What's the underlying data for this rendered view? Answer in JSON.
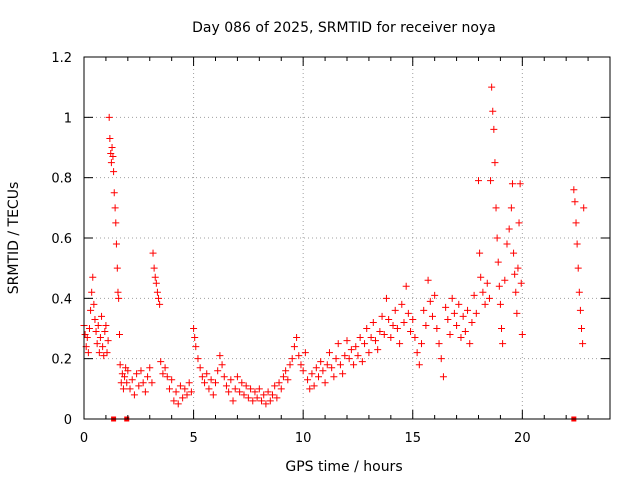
{
  "chart_data": {
    "type": "scatter",
    "title": "Day 086 of 2025, SRMTID for receiver noya",
    "xlabel": "GPS time / hours",
    "ylabel": "SRMTID / TECUs",
    "xlim": [
      0,
      24
    ],
    "ylim": [
      0,
      1.2
    ],
    "xticks": [
      0,
      5,
      10,
      15,
      20
    ],
    "xtick_labels": [
      "0",
      "5",
      "10",
      "15",
      "20"
    ],
    "yticks": [
      0,
      0.2,
      0.4,
      0.6,
      0.8,
      1.0,
      1.2
    ],
    "ytick_labels": [
      "0",
      "0.2",
      "0.4",
      "0.6",
      "0.8",
      "1",
      "1.2"
    ],
    "grid": true,
    "marker": "plus",
    "color": "#ff0000",
    "series": [
      {
        "name": "SRMTID",
        "points": [
          [
            0.0,
            0.31
          ],
          [
            0.05,
            0.28
          ],
          [
            0.1,
            0.24
          ],
          [
            0.15,
            0.27
          ],
          [
            0.2,
            0.22
          ],
          [
            0.25,
            0.3
          ],
          [
            0.3,
            0.36
          ],
          [
            0.35,
            0.42
          ],
          [
            0.4,
            0.47
          ],
          [
            0.45,
            0.38
          ],
          [
            0.5,
            0.33
          ],
          [
            0.55,
            0.29
          ],
          [
            0.6,
            0.25
          ],
          [
            0.65,
            0.31
          ],
          [
            0.7,
            0.22
          ],
          [
            0.75,
            0.27
          ],
          [
            0.8,
            0.34
          ],
          [
            0.85,
            0.24
          ],
          [
            0.9,
            0.21
          ],
          [
            0.95,
            0.29
          ],
          [
            1.0,
            0.31
          ],
          [
            1.05,
            0.22
          ],
          [
            1.1,
            0.26
          ],
          [
            1.15,
            1.0
          ],
          [
            1.18,
            0.93
          ],
          [
            1.22,
            0.88
          ],
          [
            1.25,
            0.85
          ],
          [
            1.28,
            0.9
          ],
          [
            1.32,
            0.87
          ],
          [
            1.35,
            0.82
          ],
          [
            1.38,
            0.75
          ],
          [
            1.42,
            0.7
          ],
          [
            1.45,
            0.65
          ],
          [
            1.48,
            0.58
          ],
          [
            1.52,
            0.5
          ],
          [
            1.55,
            0.42
          ],
          [
            1.58,
            0.4
          ],
          [
            1.62,
            0.28
          ],
          [
            1.65,
            0.18
          ],
          [
            1.7,
            0.12
          ],
          [
            1.75,
            0.15
          ],
          [
            1.8,
            0.1
          ],
          [
            1.85,
            0.14
          ],
          [
            1.9,
            0.17
          ],
          [
            1.95,
            0.12
          ],
          [
            2.0,
            0.16
          ],
          [
            2.1,
            0.1
          ],
          [
            2.2,
            0.13
          ],
          [
            2.3,
            0.08
          ],
          [
            2.4,
            0.15
          ],
          [
            2.5,
            0.11
          ],
          [
            2.6,
            0.16
          ],
          [
            2.7,
            0.12
          ],
          [
            2.8,
            0.09
          ],
          [
            2.9,
            0.14
          ],
          [
            3.0,
            0.17
          ],
          [
            3.1,
            0.12
          ],
          [
            3.15,
            0.55
          ],
          [
            3.2,
            0.5
          ],
          [
            3.25,
            0.47
          ],
          [
            3.3,
            0.45
          ],
          [
            3.35,
            0.42
          ],
          [
            3.4,
            0.4
          ],
          [
            3.45,
            0.38
          ],
          [
            3.5,
            0.19
          ],
          [
            3.6,
            0.15
          ],
          [
            3.7,
            0.17
          ],
          [
            3.8,
            0.14
          ],
          [
            3.9,
            0.1
          ],
          [
            4.0,
            0.13
          ],
          [
            4.1,
            0.06
          ],
          [
            4.2,
            0.09
          ],
          [
            4.3,
            0.05
          ],
          [
            4.4,
            0.11
          ],
          [
            4.5,
            0.07
          ],
          [
            4.6,
            0.1
          ],
          [
            4.7,
            0.08
          ],
          [
            4.8,
            0.12
          ],
          [
            4.9,
            0.09
          ],
          [
            5.0,
            0.3
          ],
          [
            5.05,
            0.27
          ],
          [
            5.1,
            0.24
          ],
          [
            5.2,
            0.2
          ],
          [
            5.3,
            0.17
          ],
          [
            5.4,
            0.14
          ],
          [
            5.5,
            0.12
          ],
          [
            5.6,
            0.15
          ],
          [
            5.7,
            0.1
          ],
          [
            5.8,
            0.13
          ],
          [
            5.9,
            0.08
          ],
          [
            6.0,
            0.12
          ],
          [
            6.1,
            0.16
          ],
          [
            6.2,
            0.21
          ],
          [
            6.3,
            0.18
          ],
          [
            6.4,
            0.14
          ],
          [
            6.5,
            0.11
          ],
          [
            6.6,
            0.09
          ],
          [
            6.7,
            0.13
          ],
          [
            6.8,
            0.06
          ],
          [
            6.9,
            0.1
          ],
          [
            7.0,
            0.14
          ],
          [
            7.1,
            0.09
          ],
          [
            7.2,
            0.12
          ],
          [
            7.3,
            0.08
          ],
          [
            7.4,
            0.11
          ],
          [
            7.5,
            0.07
          ],
          [
            7.6,
            0.1
          ],
          [
            7.7,
            0.06
          ],
          [
            7.8,
            0.09
          ],
          [
            7.9,
            0.07
          ],
          [
            8.0,
            0.1
          ],
          [
            8.1,
            0.06
          ],
          [
            8.2,
            0.08
          ],
          [
            8.3,
            0.05
          ],
          [
            8.4,
            0.09
          ],
          [
            8.5,
            0.06
          ],
          [
            8.6,
            0.08
          ],
          [
            8.7,
            0.11
          ],
          [
            8.8,
            0.07
          ],
          [
            8.9,
            0.12
          ],
          [
            9.0,
            0.1
          ],
          [
            9.1,
            0.14
          ],
          [
            9.2,
            0.16
          ],
          [
            9.3,
            0.13
          ],
          [
            9.4,
            0.18
          ],
          [
            9.5,
            0.2
          ],
          [
            9.6,
            0.24
          ],
          [
            9.7,
            0.27
          ],
          [
            9.8,
            0.21
          ],
          [
            9.9,
            0.18
          ],
          [
            10.0,
            0.16
          ],
          [
            10.1,
            0.22
          ],
          [
            10.2,
            0.13
          ],
          [
            10.3,
            0.1
          ],
          [
            10.4,
            0.15
          ],
          [
            10.5,
            0.11
          ],
          [
            10.6,
            0.17
          ],
          [
            10.7,
            0.14
          ],
          [
            10.8,
            0.19
          ],
          [
            10.9,
            0.16
          ],
          [
            11.0,
            0.12
          ],
          [
            11.1,
            0.18
          ],
          [
            11.2,
            0.22
          ],
          [
            11.3,
            0.17
          ],
          [
            11.4,
            0.14
          ],
          [
            11.5,
            0.2
          ],
          [
            11.6,
            0.25
          ],
          [
            11.7,
            0.18
          ],
          [
            11.8,
            0.15
          ],
          [
            11.9,
            0.21
          ],
          [
            12.0,
            0.26
          ],
          [
            12.1,
            0.2
          ],
          [
            12.2,
            0.23
          ],
          [
            12.3,
            0.18
          ],
          [
            12.4,
            0.24
          ],
          [
            12.5,
            0.21
          ],
          [
            12.6,
            0.27
          ],
          [
            12.7,
            0.19
          ],
          [
            12.8,
            0.25
          ],
          [
            12.9,
            0.3
          ],
          [
            13.0,
            0.22
          ],
          [
            13.1,
            0.27
          ],
          [
            13.2,
            0.32
          ],
          [
            13.3,
            0.26
          ],
          [
            13.4,
            0.23
          ],
          [
            13.5,
            0.29
          ],
          [
            13.6,
            0.34
          ],
          [
            13.7,
            0.28
          ],
          [
            13.8,
            0.4
          ],
          [
            13.9,
            0.33
          ],
          [
            14.0,
            0.27
          ],
          [
            14.1,
            0.31
          ],
          [
            14.2,
            0.36
          ],
          [
            14.3,
            0.3
          ],
          [
            14.4,
            0.25
          ],
          [
            14.5,
            0.38
          ],
          [
            14.6,
            0.32
          ],
          [
            14.7,
            0.44
          ],
          [
            14.8,
            0.35
          ],
          [
            14.9,
            0.29
          ],
          [
            15.0,
            0.33
          ],
          [
            15.1,
            0.27
          ],
          [
            15.2,
            0.22
          ],
          [
            15.3,
            0.18
          ],
          [
            15.4,
            0.25
          ],
          [
            15.5,
            0.36
          ],
          [
            15.6,
            0.31
          ],
          [
            15.7,
            0.46
          ],
          [
            15.8,
            0.39
          ],
          [
            15.9,
            0.34
          ],
          [
            16.0,
            0.41
          ],
          [
            16.1,
            0.3
          ],
          [
            16.2,
            0.25
          ],
          [
            16.3,
            0.2
          ],
          [
            16.4,
            0.14
          ],
          [
            16.5,
            0.37
          ],
          [
            16.6,
            0.33
          ],
          [
            16.7,
            0.28
          ],
          [
            16.8,
            0.4
          ],
          [
            16.9,
            0.35
          ],
          [
            17.0,
            0.31
          ],
          [
            17.1,
            0.38
          ],
          [
            17.2,
            0.27
          ],
          [
            17.3,
            0.34
          ],
          [
            17.4,
            0.29
          ],
          [
            17.5,
            0.36
          ],
          [
            17.6,
            0.25
          ],
          [
            17.7,
            0.32
          ],
          [
            17.8,
            0.41
          ],
          [
            17.9,
            0.35
          ],
          [
            18.0,
            0.79
          ],
          [
            18.05,
            0.55
          ],
          [
            18.1,
            0.47
          ],
          [
            18.2,
            0.42
          ],
          [
            18.3,
            0.38
          ],
          [
            18.4,
            0.45
          ],
          [
            18.5,
            0.4
          ],
          [
            18.55,
            0.79
          ],
          [
            18.6,
            1.1
          ],
          [
            18.65,
            1.02
          ],
          [
            18.7,
            0.96
          ],
          [
            18.75,
            0.85
          ],
          [
            18.8,
            0.7
          ],
          [
            18.85,
            0.6
          ],
          [
            18.9,
            0.52
          ],
          [
            18.95,
            0.44
          ],
          [
            19.0,
            0.38
          ],
          [
            19.05,
            0.3
          ],
          [
            19.1,
            0.25
          ],
          [
            19.2,
            0.46
          ],
          [
            19.3,
            0.58
          ],
          [
            19.4,
            0.63
          ],
          [
            19.5,
            0.7
          ],
          [
            19.55,
            0.78
          ],
          [
            19.6,
            0.55
          ],
          [
            19.65,
            0.48
          ],
          [
            19.7,
            0.42
          ],
          [
            19.75,
            0.35
          ],
          [
            19.8,
            0.5
          ],
          [
            19.85,
            0.65
          ],
          [
            19.9,
            0.78
          ],
          [
            19.95,
            0.45
          ],
          [
            20.0,
            0.28
          ],
          [
            22.35,
            0.76
          ],
          [
            22.4,
            0.72
          ],
          [
            22.45,
            0.65
          ],
          [
            22.5,
            0.58
          ],
          [
            22.55,
            0.5
          ],
          [
            22.6,
            0.42
          ],
          [
            22.65,
            0.36
          ],
          [
            22.7,
            0.3
          ],
          [
            22.75,
            0.25
          ],
          [
            22.8,
            0.7
          ]
        ]
      }
    ],
    "zero_markers": [
      1.35,
      1.95,
      22.35
    ]
  }
}
